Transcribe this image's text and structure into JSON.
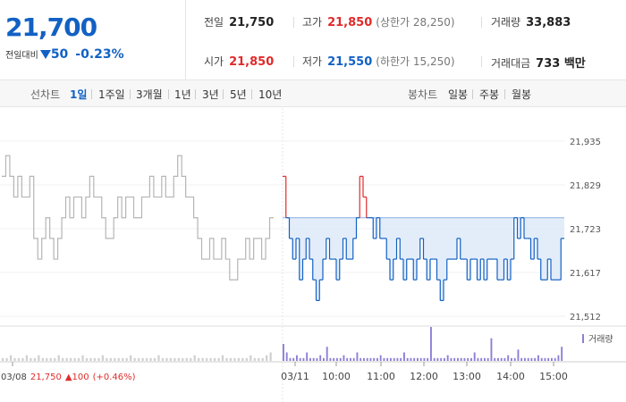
{
  "summary": {
    "current_price": "21,700",
    "change_label": "전일대비",
    "change_amount": "50",
    "change_pct": "-0.23%"
  },
  "stats": {
    "prev": {
      "label": "전일",
      "value": "21,750"
    },
    "high": {
      "label": "고가",
      "value": "21,850",
      "sub": "(상한가 28,250)"
    },
    "volume": {
      "label": "거래량",
      "value": "33,883"
    },
    "open": {
      "label": "시가",
      "value": "21,850"
    },
    "low": {
      "label": "저가",
      "value": "21,550",
      "sub": "(하한가 15,250)"
    },
    "amount": {
      "label": "거래대금",
      "value": "733 백만"
    }
  },
  "tabs": {
    "line_label": "선차트",
    "line_tabs": [
      "1일",
      "1주일",
      "3개월",
      "1년",
      "3년",
      "5년",
      "10년"
    ],
    "active": "1일",
    "candle_label": "봉차트",
    "candle_tabs": [
      "일봉",
      "주봉",
      "월봉"
    ]
  },
  "colors": {
    "up": "#e02b2b",
    "down": "#1261c4",
    "prev_day": "#b5b5b5",
    "fill": "#dce8f8"
  },
  "chart_data": {
    "type": "line",
    "y_ticks": [
      "21,935",
      "21,829",
      "21,723",
      "21,617",
      "21,512"
    ],
    "ylim": [
      21512,
      21935
    ],
    "baseline": 21750,
    "volume_label": "거래량",
    "x_ticks": [
      "03/08",
      "03/11",
      "10:00",
      "11:00",
      "12:00",
      "13:00",
      "14:00",
      "15:00"
    ],
    "prev_day_note": {
      "date": "03/08",
      "price": "21,750",
      "change": "▲100",
      "pct": "(+0.46%)"
    },
    "prev_day_series": [
      21850,
      21900,
      21850,
      21800,
      21850,
      21800,
      21800,
      21850,
      21700,
      21650,
      21700,
      21750,
      21700,
      21650,
      21700,
      21750,
      21800,
      21750,
      21800,
      21800,
      21750,
      21800,
      21850,
      21800,
      21800,
      21750,
      21700,
      21700,
      21750,
      21800,
      21750,
      21800,
      21800,
      21750,
      21750,
      21800,
      21800,
      21850,
      21800,
      21800,
      21850,
      21800,
      21800,
      21850,
      21900,
      21850,
      21800,
      21800,
      21750,
      21700,
      21650,
      21650,
      21700,
      21650,
      21650,
      21700,
      21650,
      21600,
      21600,
      21650,
      21650,
      21700,
      21650,
      21700,
      21700,
      21650,
      21700,
      21750
    ],
    "today_series": [
      21850,
      21750,
      21700,
      21650,
      21700,
      21600,
      21650,
      21700,
      21650,
      21600,
      21550,
      21600,
      21650,
      21700,
      21650,
      21650,
      21600,
      21650,
      21700,
      21650,
      21650,
      21700,
      21750,
      21850,
      21800,
      21750,
      21750,
      21700,
      21750,
      21700,
      21700,
      21650,
      21600,
      21650,
      21700,
      21650,
      21600,
      21650,
      21650,
      21600,
      21650,
      21700,
      21650,
      21600,
      21650,
      21650,
      21600,
      21550,
      21600,
      21650,
      21650,
      21650,
      21700,
      21650,
      21650,
      21600,
      21650,
      21650,
      21600,
      21650,
      21600,
      21650,
      21650,
      21650,
      21600,
      21600,
      21650,
      21600,
      21650,
      21750,
      21700,
      21750,
      21700,
      21700,
      21650,
      21700,
      21650,
      21600,
      21600,
      21650,
      21600,
      21600,
      21600,
      21700
    ],
    "volumes_prev": [
      1,
      1,
      2,
      1,
      1,
      1,
      2,
      1,
      1,
      2,
      1,
      1,
      1,
      1,
      2,
      1,
      1,
      1,
      1,
      1,
      2,
      1,
      1,
      1,
      1,
      2,
      1,
      1,
      1,
      1,
      1,
      1,
      2,
      1,
      1,
      1,
      1,
      1,
      1,
      2,
      1,
      1,
      1,
      1,
      1,
      1,
      1,
      1,
      2,
      1,
      1,
      1,
      1,
      1,
      1,
      2,
      1,
      1,
      1,
      1,
      1,
      1,
      2,
      1,
      1,
      1,
      2,
      3
    ],
    "volumes_today": [
      6,
      3,
      1,
      1,
      2,
      1,
      1,
      3,
      1,
      1,
      1,
      2,
      1,
      5,
      1,
      1,
      1,
      1,
      2,
      1,
      1,
      1,
      3,
      1,
      1,
      1,
      1,
      1,
      1,
      2,
      1,
      1,
      1,
      1,
      1,
      1,
      3,
      1,
      1,
      1,
      1,
      1,
      1,
      1,
      12,
      1,
      1,
      1,
      1,
      2,
      1,
      1,
      1,
      1,
      1,
      1,
      1,
      3,
      1,
      1,
      1,
      1,
      8,
      1,
      1,
      1,
      1,
      2,
      1,
      1,
      4,
      1,
      1,
      1,
      1,
      1,
      2,
      1,
      1,
      1,
      1,
      1,
      2,
      5
    ]
  }
}
